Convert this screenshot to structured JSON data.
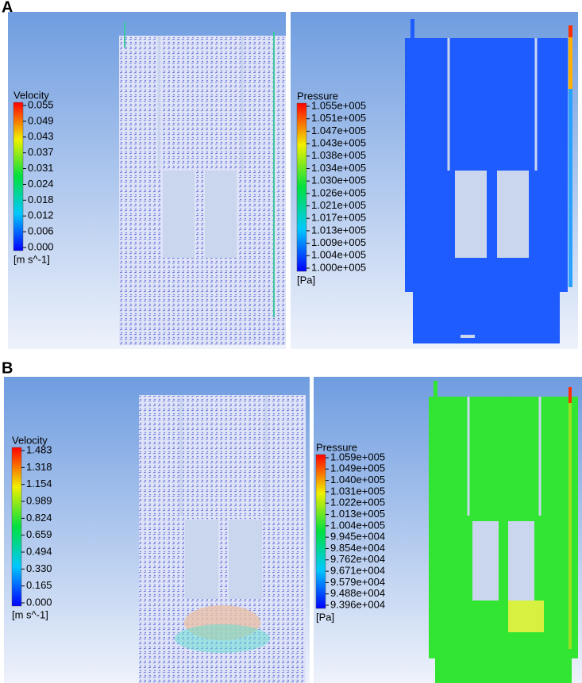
{
  "panels": [
    {
      "label": "A",
      "velocity": {
        "title": "Velocity",
        "ticks": [
          "0.055",
          "0.049",
          "0.043",
          "0.037",
          "0.031",
          "0.024",
          "0.018",
          "0.012",
          "0.006",
          "0.000"
        ],
        "unit": "[m s^-1]"
      },
      "pressure": {
        "title": "Pressure",
        "ticks": [
          "1.055e+005",
          "1.051e+005",
          "1.047e+005",
          "1.043e+005",
          "1.038e+005",
          "1.034e+005",
          "1.030e+005",
          "1.026e+005",
          "1.021e+005",
          "1.017e+005",
          "1.013e+005",
          "1.009e+005",
          "1.004e+005",
          "1.000e+005"
        ],
        "unit": "[Pa]"
      }
    },
    {
      "label": "B",
      "velocity": {
        "title": "Velocity",
        "ticks": [
          "1.483",
          "1.318",
          "1.154",
          "0.989",
          "0.824",
          "0.659",
          "0.494",
          "0.330",
          "0.165",
          "0.000"
        ],
        "unit": "[m s^-1]"
      },
      "pressure": {
        "title": "Pressure",
        "ticks": [
          "1.059e+005",
          "1.049e+005",
          "1.040e+005",
          "1.031e+005",
          "1.022e+005",
          "1.013e+005",
          "1.004e+005",
          "9.945e+004",
          "9.854e+004",
          "9.762e+004",
          "9.671e+004",
          "9.579e+004",
          "9.488e+004",
          "9.396e+004"
        ],
        "unit": "[Pa]"
      }
    }
  ]
}
